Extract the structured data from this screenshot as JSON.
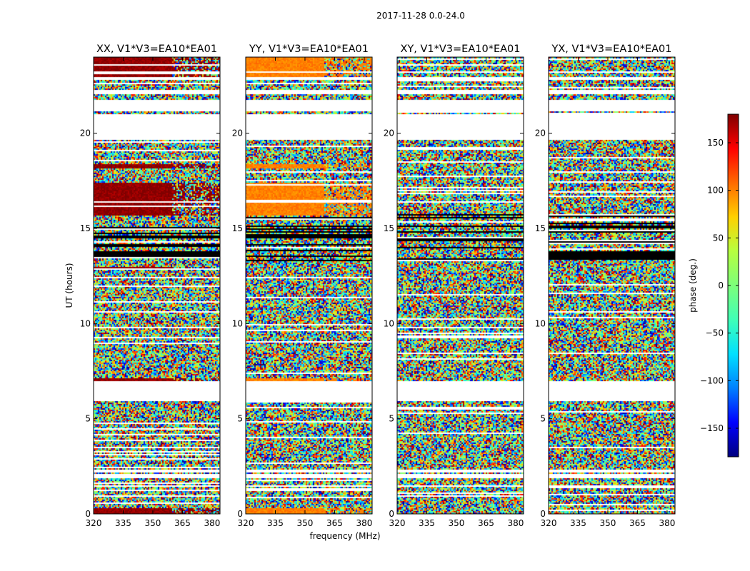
{
  "figure_title": "2017-11-28 0.0-24.0",
  "chart_data": {
    "type": "heatmap",
    "xlabel": "frequency (MHz)",
    "ylabel": "UT (hours)",
    "xlim": [
      320,
      384
    ],
    "ylim": [
      0,
      24
    ],
    "xticks": [
      320,
      335,
      350,
      365,
      380
    ],
    "yticks": [
      0,
      5,
      10,
      15,
      20
    ],
    "colorbar": {
      "label": "phase (deg.)",
      "range": [
        -180,
        180
      ],
      "ticks": [
        150,
        100,
        50,
        0,
        -50,
        -100,
        -150
      ],
      "tick_labels": [
        "150",
        "100",
        "50",
        "0",
        "−50",
        "−100",
        "−150"
      ],
      "colormap": [
        "#00007f",
        "#0000ff",
        "#0080ff",
        "#00e0ff",
        "#40ffb7",
        "#7dff7a",
        "#b7ff40",
        "#ffd000",
        "#ff6a00",
        "#ff0000",
        "#7f0000"
      ]
    },
    "data_gaps_ut_hours": [
      [
        1.45,
        1.55
      ],
      [
        1.95,
        2.15
      ],
      [
        2.25,
        2.35
      ],
      [
        6.0,
        7.0
      ],
      [
        19.7,
        21.0
      ],
      [
        21.2,
        21.8
      ],
      [
        22.1,
        22.3
      ],
      [
        22.85,
        23.0
      ],
      [
        23.2,
        23.3
      ]
    ],
    "panels": [
      {
        "title": "XX, V1*V3=EA10*EA01",
        "correlation": "XX",
        "dominant_phase_deg": 175,
        "coherent_bands_ut_hours": [
          [
            0.05,
            0.3
          ],
          [
            7.0,
            7.15
          ],
          [
            12.9,
            13.0
          ],
          [
            15.7,
            17.4
          ],
          [
            18.2,
            18.4
          ],
          [
            23.0,
            24.0
          ]
        ]
      },
      {
        "title": "YY, V1*V3=EA10*EA01",
        "correlation": "YY",
        "dominant_phase_deg": 100,
        "coherent_bands_ut_hours": [
          [
            0.05,
            0.3
          ],
          [
            7.0,
            7.15
          ],
          [
            15.7,
            17.4
          ],
          [
            18.2,
            18.4
          ],
          [
            23.0,
            24.0
          ]
        ]
      },
      {
        "title": "XY, V1*V3=EA10*EA01",
        "correlation": "XY",
        "dominant_phase_deg": null,
        "coherent_bands_ut_hours": []
      },
      {
        "title": "YX, V1*V3=EA10*EA01",
        "correlation": "YX",
        "dominant_phase_deg": null,
        "coherent_bands_ut_hours": []
      }
    ]
  }
}
